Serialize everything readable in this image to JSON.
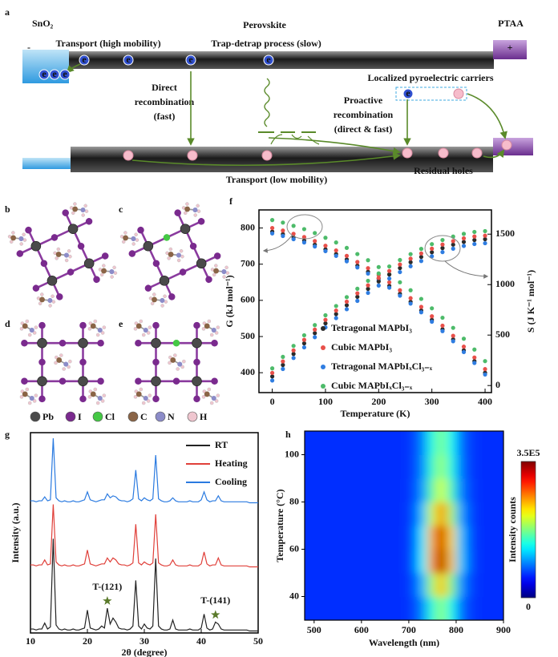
{
  "panel_labels": [
    "a",
    "b",
    "c",
    "d",
    "e",
    "f",
    "g",
    "h"
  ],
  "schematic": {
    "etl": "SnO₂",
    "absorber": "Perovskite",
    "htl": "PTAA",
    "minus": "-",
    "plus": "+",
    "electron": "e",
    "transport_high": "Transport (high mobility)",
    "trap_detrap": "Trap-detrap process (slow)",
    "localized": "Localized pyroelectric carriers",
    "direct": [
      "Direct",
      "recombination",
      "(fast)"
    ],
    "proactive": [
      "Proactive",
      "recombination",
      "(direct & fast)"
    ],
    "transport_low": "Transport (low mobility)",
    "residual": "Residual holes"
  },
  "atoms_legend": [
    {
      "name": "Pb",
      "color": "#4a4a4a"
    },
    {
      "name": "I",
      "color": "#7a2a8e"
    },
    {
      "name": "Cl",
      "color": "#45c845"
    },
    {
      "name": "C",
      "color": "#8a6446"
    },
    {
      "name": "N",
      "color": "#8c8cc8"
    },
    {
      "name": "H",
      "color": "#efc6cf"
    }
  ],
  "chart_data": [
    {
      "type": "scatter",
      "x": [
        0,
        20,
        40,
        60,
        80,
        100,
        120,
        140,
        160,
        180,
        200,
        220,
        240,
        260,
        280,
        300,
        320,
        340,
        360,
        380,
        400
      ],
      "xlim": [
        -25,
        412
      ],
      "xticks": [
        0,
        100,
        200,
        300,
        400
      ],
      "xlabel": "Temperature (K)",
      "ylabel": "G (kJ mol⁻¹)",
      "ylim": [
        345,
        850
      ],
      "yticks": [
        400,
        500,
        600,
        700,
        800
      ],
      "y2label": "S (J K⁻¹ mol⁻¹)",
      "y2lim": [
        -70,
        1740
      ],
      "y2ticks": [
        0,
        500,
        1000,
        1500
      ],
      "series": [
        {
          "name": "Tetragonal MAPbI₃",
          "color": "#2b2b2b",
          "values": [
            790,
            783,
            774,
            765,
            754,
            741,
            728,
            713,
            696,
            679,
            660,
            640,
            618,
            596,
            572,
            546,
            520,
            492,
            462,
            432,
            400
          ]
        },
        {
          "name": "Cubic MAPbI₃",
          "color": "#e8504a",
          "values": [
            800,
            793,
            784,
            775,
            764,
            751,
            738,
            723,
            706,
            689,
            670,
            650,
            628,
            606,
            582,
            556,
            530,
            502,
            472,
            442,
            410
          ]
        },
        {
          "name": "Tetragonal MAPbIₓCl₃₋ₓ",
          "color": "#2f7de1",
          "values": [
            785,
            778,
            769,
            760,
            749,
            736,
            723,
            708,
            691,
            674,
            655,
            635,
            613,
            591,
            567,
            541,
            515,
            487,
            457,
            427,
            395
          ]
        },
        {
          "name": "Cubic MAPbIₓCl₃₋ₓ",
          "color": "#4dbb6a",
          "values": [
            822,
            815,
            806,
            797,
            786,
            773,
            760,
            745,
            728,
            711,
            692,
            672,
            650,
            628,
            604,
            578,
            552,
            524,
            494,
            464,
            432
          ]
        },
        {
          "color": "#2b2b2b",
          "axis": "y2",
          "values": [
            90,
            204,
            313,
            418,
            519,
            616,
            708,
            796,
            879,
            958,
            1031,
            1100,
            1164,
            1222,
            1274,
            1321,
            1362,
            1396,
            1423,
            1442,
            1450
          ]
        },
        {
          "color": "#e8504a",
          "axis": "y2",
          "values": [
            125,
            239,
            348,
            453,
            554,
            651,
            743,
            831,
            914,
            993,
            1066,
            1135,
            1199,
            1257,
            1309,
            1356,
            1397,
            1431,
            1458,
            1477,
            1485
          ]
        },
        {
          "color": "#2f7de1",
          "axis": "y2",
          "values": [
            50,
            164,
            273,
            378,
            479,
            576,
            668,
            756,
            839,
            918,
            991,
            1060,
            1124,
            1182,
            1234,
            1281,
            1322,
            1356,
            1383,
            1402,
            1410
          ]
        },
        {
          "color": "#4dbb6a",
          "axis": "y2",
          "values": [
            170,
            284,
            393,
            498,
            599,
            696,
            788,
            876,
            959,
            1038,
            1111,
            1180,
            1244,
            1302,
            1354,
            1401,
            1442,
            1476,
            1503,
            1522,
            1530
          ]
        }
      ]
    },
    {
      "type": "line",
      "x": [
        10,
        10.5,
        11,
        11.5,
        12,
        12.5,
        13,
        13.5,
        14,
        14.5,
        15,
        15.5,
        16,
        16.5,
        17,
        17.5,
        18,
        18.5,
        19,
        19.5,
        20,
        20.5,
        21,
        21.5,
        22,
        22.5,
        23,
        23.5,
        24,
        24.5,
        25,
        25.5,
        26,
        26.5,
        27,
        27.5,
        28,
        28.5,
        29,
        29.5,
        30,
        30.5,
        31,
        31.5,
        32,
        32.5,
        33,
        33.5,
        34,
        34.5,
        35,
        35.5,
        36,
        36.5,
        37,
        37.5,
        38,
        38.5,
        39,
        39.5,
        40,
        40.5,
        41,
        41.5,
        42,
        42.5,
        43,
        43.5,
        44,
        44.5,
        45,
        45.5,
        46,
        46.5,
        47,
        47.5,
        48,
        48.5,
        49,
        49.5,
        50
      ],
      "xlim": [
        10,
        50
      ],
      "xticks": [
        10,
        20,
        30,
        40,
        50
      ],
      "xlabel": "2θ (degree)",
      "ylabel": "Intensity (a.u.)",
      "ylim": [
        5,
        110
      ],
      "series": [
        {
          "name": "RT",
          "color": "#222222",
          "values": [
            9,
            9,
            8,
            9,
            9,
            15,
            9,
            11,
            100,
            13,
            9,
            8,
            9,
            8,
            8,
            9,
            8,
            8,
            9,
            10,
            28,
            10,
            9,
            8,
            9,
            12,
            10,
            30,
            14,
            20,
            16,
            10,
            9,
            9,
            8,
            9,
            12,
            58,
            12,
            9,
            14,
            10,
            9,
            12,
            80,
            12,
            9,
            8,
            8,
            9,
            18,
            9,
            8,
            8,
            8,
            8,
            9,
            8,
            8,
            8,
            10,
            24,
            10,
            8,
            9,
            16,
            14,
            9,
            8,
            8,
            8,
            8,
            8,
            8,
            8,
            8,
            8,
            7,
            7,
            7,
            7
          ]
        },
        {
          "name": "Heating",
          "color": "#e0403a",
          "values": [
            9,
            9,
            8,
            9,
            9,
            14,
            9,
            10,
            70,
            12,
            9,
            8,
            9,
            8,
            8,
            9,
            8,
            8,
            9,
            10,
            24,
            10,
            9,
            8,
            9,
            10,
            10,
            16,
            12,
            16,
            14,
            10,
            9,
            9,
            8,
            9,
            11,
            50,
            11,
            9,
            12,
            10,
            9,
            11,
            60,
            11,
            9,
            8,
            8,
            9,
            14,
            9,
            8,
            8,
            8,
            8,
            9,
            8,
            8,
            8,
            10,
            22,
            10,
            8,
            9,
            9,
            16,
            9,
            8,
            8,
            8,
            8,
            8,
            8,
            8,
            8,
            8,
            7,
            7,
            7,
            7
          ]
        },
        {
          "name": "Cooling",
          "color": "#2a7ae0",
          "values": [
            9,
            9,
            8,
            9,
            9,
            13,
            9,
            10,
            72,
            12,
            9,
            8,
            9,
            8,
            8,
            9,
            8,
            8,
            9,
            10,
            18,
            10,
            9,
            8,
            9,
            10,
            10,
            16,
            12,
            14,
            13,
            10,
            9,
            9,
            8,
            9,
            11,
            40,
            11,
            9,
            12,
            10,
            9,
            11,
            55,
            11,
            9,
            8,
            8,
            9,
            12,
            9,
            8,
            8,
            8,
            8,
            9,
            8,
            8,
            8,
            10,
            18,
            10,
            8,
            9,
            9,
            14,
            9,
            8,
            8,
            8,
            8,
            8,
            8,
            8,
            8,
            8,
            7,
            7,
            7,
            7
          ]
        }
      ],
      "annotations": [
        {
          "text": "T-(121)",
          "x": 23.5,
          "color": "#5a7a2a"
        },
        {
          "text": "T-(141)",
          "x": 42.5,
          "color": "#5a7a2a"
        }
      ]
    },
    {
      "type": "heatmap",
      "x": [
        490,
        510,
        530,
        550,
        570,
        590,
        610,
        630,
        650,
        670,
        690,
        710,
        730,
        750,
        770,
        790,
        810,
        830,
        850,
        870,
        890
      ],
      "y": [
        35,
        45,
        55,
        65,
        75,
        85,
        95,
        105
      ],
      "z": [
        [
          60000,
          60000,
          60000,
          60000,
          60000,
          60000,
          60000,
          60000,
          60000,
          60000,
          60000,
          66000,
          90000,
          144000,
          180000,
          138000,
          84000,
          66000,
          60000,
          60000,
          60000
        ],
        [
          60000,
          60000,
          60000,
          60000,
          60000,
          60000,
          60000,
          60000,
          60000,
          60000,
          60000,
          69000,
          105000,
          186000,
          240000,
          177000,
          96000,
          69000,
          60000,
          60000,
          60000
        ],
        [
          60000,
          60000,
          60000,
          60000,
          60000,
          60000,
          60000,
          60000,
          60000,
          60000,
          60000,
          74000,
          129000,
          253000,
          335000,
          239000,
          115000,
          74000,
          60000,
          60000,
          60000
        ],
        [
          60000,
          60000,
          60000,
          60000,
          60000,
          60000,
          60000,
          60000,
          60000,
          60000,
          60000,
          73000,
          126000,
          246000,
          325000,
          232000,
          113000,
          73000,
          60000,
          60000,
          60000
        ],
        [
          60000,
          60000,
          60000,
          60000,
          60000,
          60000,
          60000,
          60000,
          60000,
          60000,
          60000,
          70000,
          110000,
          200000,
          260000,
          190000,
          100000,
          70000,
          60000,
          60000,
          60000
        ],
        [
          60000,
          60000,
          60000,
          60000,
          60000,
          60000,
          60000,
          60000,
          60000,
          60000,
          60000,
          67000,
          96000,
          162000,
          205000,
          154000,
          89000,
          67000,
          60000,
          60000,
          60000
        ],
        [
          60000,
          60000,
          60000,
          60000,
          60000,
          60000,
          60000,
          60000,
          60000,
          60000,
          60000,
          66000,
          91000,
          148000,
          185000,
          141000,
          85000,
          66000,
          60000,
          60000,
          60000
        ],
        [
          60000,
          60000,
          60000,
          60000,
          60000,
          60000,
          60000,
          60000,
          60000,
          60000,
          60000,
          66000,
          89000,
          141000,
          175000,
          135000,
          83000,
          66000,
          60000,
          60000,
          60000
        ]
      ],
      "xlim": [
        480,
        900
      ],
      "xticks": [
        500,
        600,
        700,
        800,
        900
      ],
      "ylim": [
        30,
        110
      ],
      "yticks": [
        40,
        60,
        80,
        100
      ],
      "xlabel": "Wavelength (nm)",
      "ylabel": "Temperature (°C)",
      "colormap": "jet",
      "zlim": [
        0,
        350000
      ],
      "zticks": [
        0,
        {
          "value": 350000,
          "label": "3.5E5"
        }
      ],
      "colorbar_label": "Intensity counts"
    }
  ]
}
